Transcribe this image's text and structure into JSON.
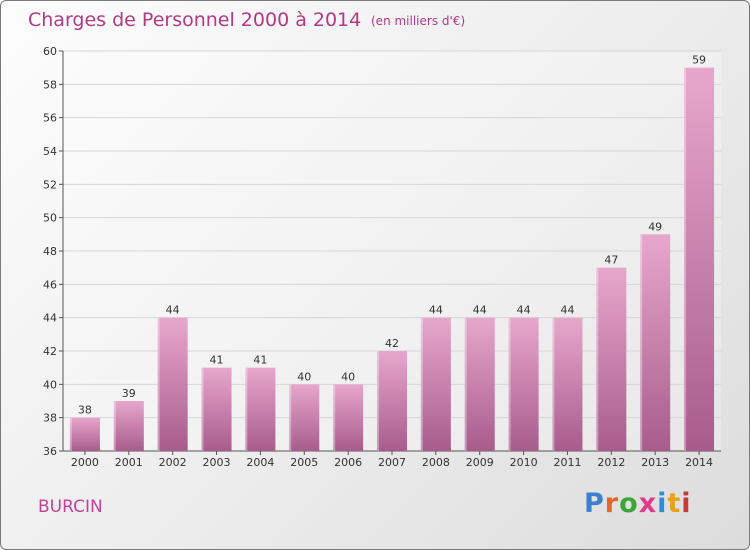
{
  "header": {
    "title": "Charges de Personnel 2000 à 2014",
    "subtitle": "(en milliers d'€)"
  },
  "footer": {
    "commune": "BURCIN",
    "logo": "Proxiti",
    "logo_colors": [
      "#3a7fd0",
      "#e0662a",
      "#3aa63a",
      "#e23a8a",
      "#2b8fd8",
      "#e6a21e",
      "#c43a3a"
    ]
  },
  "colors": {
    "accent": "#b23a84",
    "bar_top": "#e7a7cc",
    "bar_bottom": "#a85c8c"
  },
  "chart_data": {
    "type": "bar",
    "title": "Charges de Personnel 2000 à 2014",
    "subtitle": "(en milliers d'€)",
    "categories": [
      "2000",
      "2001",
      "2002",
      "2003",
      "2004",
      "2005",
      "2006",
      "2007",
      "2008",
      "2009",
      "2010",
      "2011",
      "2012",
      "2013",
      "2014"
    ],
    "values": [
      38,
      39,
      44,
      41,
      41,
      40,
      40,
      42,
      44,
      44,
      44,
      44,
      47,
      49,
      59
    ],
    "ylim": [
      36,
      60
    ],
    "yticks": [
      36,
      38,
      40,
      42,
      44,
      46,
      48,
      50,
      52,
      54,
      56,
      58,
      60
    ],
    "grid": true,
    "xlabel": "",
    "ylabel": ""
  }
}
